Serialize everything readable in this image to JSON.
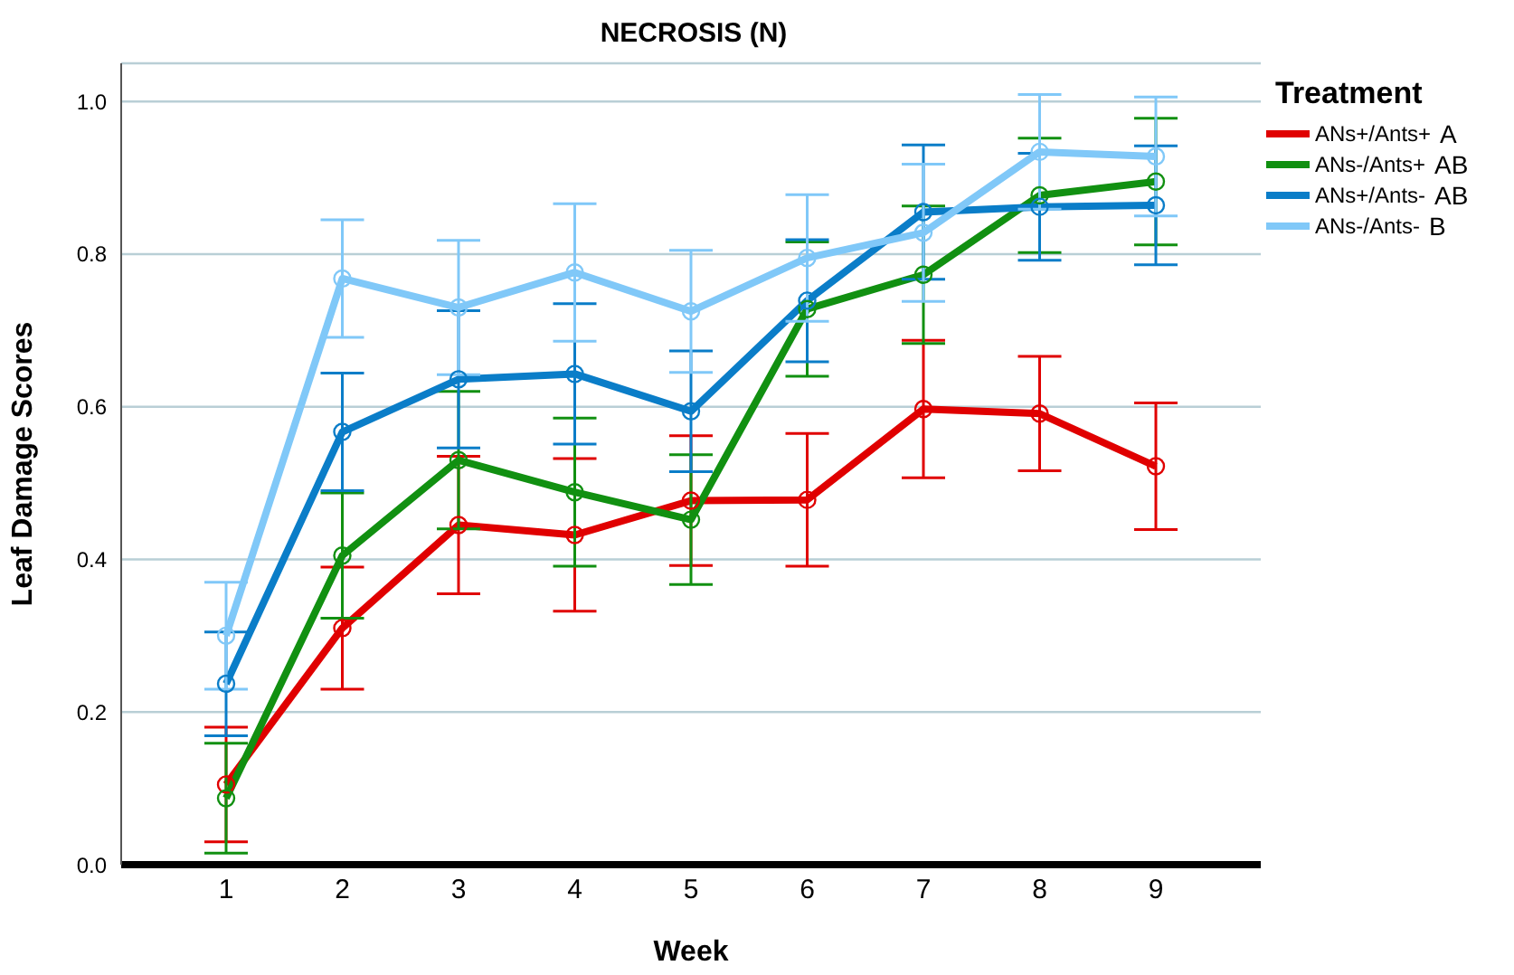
{
  "chart_data": {
    "type": "line",
    "title": "NECROSIS (N)",
    "xlabel": "Week",
    "ylabel": "Leaf Damage Scores",
    "legend_title": "Treatment",
    "categories": [
      "1",
      "2",
      "3",
      "4",
      "5",
      "6",
      "7",
      "8",
      "9"
    ],
    "series": [
      {
        "name": "ANs+/Ants+",
        "color": "#e00000",
        "values": [
          0.105,
          0.31,
          0.445,
          0.432,
          0.477,
          0.478,
          0.597,
          0.591,
          0.522
        ],
        "errors": [
          0.075,
          0.08,
          0.09,
          0.1,
          0.085,
          0.087,
          0.09,
          0.075,
          0.083
        ]
      },
      {
        "name": "ANs-/Ants+",
        "color": "#119011",
        "values": [
          0.087,
          0.405,
          0.53,
          0.488,
          0.452,
          0.728,
          0.773,
          0.877,
          0.895
        ],
        "errors": [
          0.072,
          0.082,
          0.09,
          0.097,
          0.085,
          0.088,
          0.09,
          0.075,
          0.083
        ]
      },
      {
        "name": "ANs+/Ants-",
        "color": "#0a7dc8",
        "values": [
          0.237,
          0.567,
          0.636,
          0.643,
          0.594,
          0.739,
          0.855,
          0.862,
          0.864
        ],
        "errors": [
          0.068,
          0.077,
          0.09,
          0.092,
          0.079,
          0.08,
          0.088,
          0.07,
          0.078
        ]
      },
      {
        "name": "ANs-/Ants-",
        "color": "#80c8f8",
        "values": [
          0.3,
          0.768,
          0.73,
          0.776,
          0.725,
          0.795,
          0.828,
          0.934,
          0.928
        ],
        "errors": [
          0.07,
          0.077,
          0.088,
          0.09,
          0.08,
          0.083,
          0.09,
          0.075,
          0.078
        ]
      }
    ],
    "annotations": [
      "A",
      "AB",
      "AB",
      "B"
    ],
    "ylim": [
      0,
      1.05
    ],
    "yticks": [
      {
        "value": 0,
        "label": "0.0"
      },
      {
        "value": 0.2,
        "label": "0.2"
      },
      {
        "value": 0.4,
        "label": "0.4"
      },
      {
        "value": 0.6,
        "label": "0.6"
      },
      {
        "value": 0.8,
        "label": "0.8"
      },
      {
        "value": 1,
        "label": "1.0"
      }
    ],
    "grid": "y",
    "legend": "right",
    "marker": "circle",
    "line_style": "solid"
  }
}
